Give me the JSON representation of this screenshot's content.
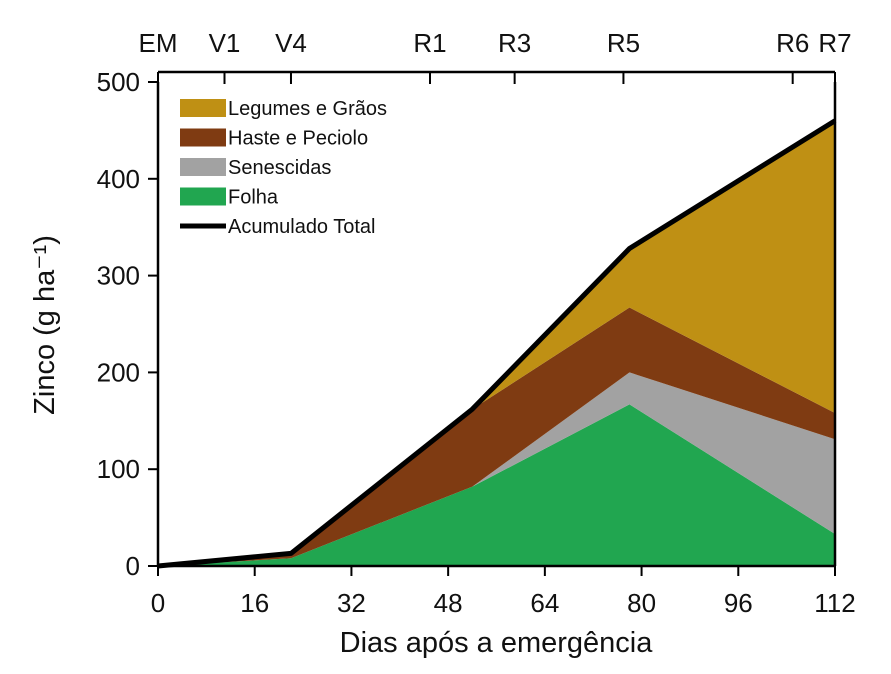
{
  "chart_data": {
    "type": "area",
    "title": "",
    "xlabel": "Dias após a emergência",
    "ylabel": "Zinco (g ha⁻¹)",
    "xlim": [
      0,
      112
    ],
    "ylim": [
      0,
      500
    ],
    "xticks": [
      0,
      16,
      32,
      48,
      64,
      80,
      96,
      112
    ],
    "yticks": [
      0,
      100,
      200,
      300,
      400,
      500
    ],
    "stage_markers": [
      {
        "label": "EM",
        "x": 0
      },
      {
        "label": "V1",
        "x": 11
      },
      {
        "label": "V4",
        "x": 22
      },
      {
        "label": "R1",
        "x": 45
      },
      {
        "label": "R3",
        "x": 59
      },
      {
        "label": "R5",
        "x": 77
      },
      {
        "label": "R6",
        "x": 105
      },
      {
        "label": "R7",
        "x": 112
      }
    ],
    "x": [
      0,
      22,
      52,
      78,
      112
    ],
    "stacked": true,
    "series": [
      {
        "name": "Folha",
        "color": "#21a650",
        "values": [
          0,
          8,
          82,
          167,
          33
        ]
      },
      {
        "name": "Senescidas",
        "color": "#a2a2a2",
        "values": [
          0,
          0,
          0,
          33,
          98
        ]
      },
      {
        "name": "Haste e Peciolo",
        "color": "#7f3b12",
        "values": [
          0,
          4,
          80,
          67,
          27
        ]
      },
      {
        "name": "Legumes e Grãos",
        "color": "#bf9014",
        "values": [
          0,
          0,
          0,
          60,
          301
        ]
      }
    ],
    "line": {
      "name": "Acumulado Total",
      "color": "#000000",
      "values": [
        0,
        13,
        162,
        328,
        460
      ]
    },
    "legend": {
      "position": "top-left",
      "order": [
        "Legumes e Grãos",
        "Haste e Peciolo",
        "Senescidas",
        "Folha",
        "Acumulado Total"
      ]
    },
    "grid": false
  }
}
